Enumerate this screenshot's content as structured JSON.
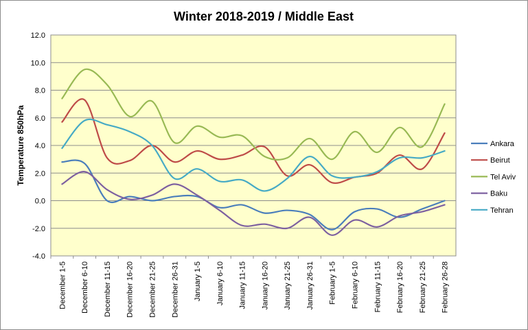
{
  "chart_data": {
    "type": "line",
    "title": "Winter 2018-2019 / Middle East",
    "xlabel": "",
    "ylabel": "Temperature 850hPa",
    "ylim": [
      -4.0,
      12.0
    ],
    "yticks": [
      "-4.0",
      "-2.0",
      "0.0",
      "2.0",
      "4.0",
      "6.0",
      "8.0",
      "10.0",
      "12.0"
    ],
    "grid": true,
    "legend_position": "right",
    "plot_background": "#ffffcc",
    "categories": [
      "December 1-5",
      "December 6-10",
      "December 11-15",
      "December 16-20",
      "December 21-25",
      "December 26-31",
      "January 1-5",
      "January 6-10",
      "January 11-15",
      "January 16-20",
      "January 21-25",
      "January 26-31",
      "February 1-5",
      "February 6-10",
      "February 11-15",
      "February 16-20",
      "February 21-25",
      "February 26-28"
    ],
    "series": [
      {
        "name": "Ankara",
        "color": "#4a7ebb",
        "values": [
          2.8,
          2.7,
          0.0,
          0.3,
          0.0,
          0.3,
          0.3,
          -0.5,
          -0.3,
          -0.9,
          -0.7,
          -1.0,
          -2.1,
          -0.8,
          -0.6,
          -1.2,
          -0.6,
          0.0
        ]
      },
      {
        "name": "Beirut",
        "color": "#be4b48",
        "values": [
          5.7,
          7.3,
          3.1,
          2.9,
          4.0,
          2.8,
          3.6,
          3.0,
          3.3,
          3.9,
          1.8,
          2.6,
          1.3,
          1.7,
          2.0,
          3.3,
          2.3,
          4.9
        ]
      },
      {
        "name": "Tel Aviv",
        "color": "#98b954",
        "values": [
          7.4,
          9.5,
          8.4,
          6.1,
          7.2,
          4.2,
          5.4,
          4.6,
          4.7,
          3.2,
          3.1,
          4.5,
          3.0,
          5.0,
          3.5,
          5.3,
          3.9,
          7.0
        ]
      },
      {
        "name": "Baku",
        "color": "#7d60a0",
        "values": [
          1.2,
          2.1,
          0.8,
          0.1,
          0.4,
          1.2,
          0.4,
          -0.7,
          -1.8,
          -1.7,
          -2.0,
          -1.2,
          -2.5,
          -1.4,
          -1.9,
          -1.1,
          -0.8,
          -0.3
        ]
      },
      {
        "name": "Tehran",
        "color": "#46aac5",
        "values": [
          3.8,
          5.8,
          5.5,
          5.0,
          4.0,
          1.6,
          2.3,
          1.4,
          1.5,
          0.7,
          1.6,
          3.2,
          1.8,
          1.7,
          2.1,
          3.1,
          3.1,
          3.6
        ]
      }
    ]
  }
}
